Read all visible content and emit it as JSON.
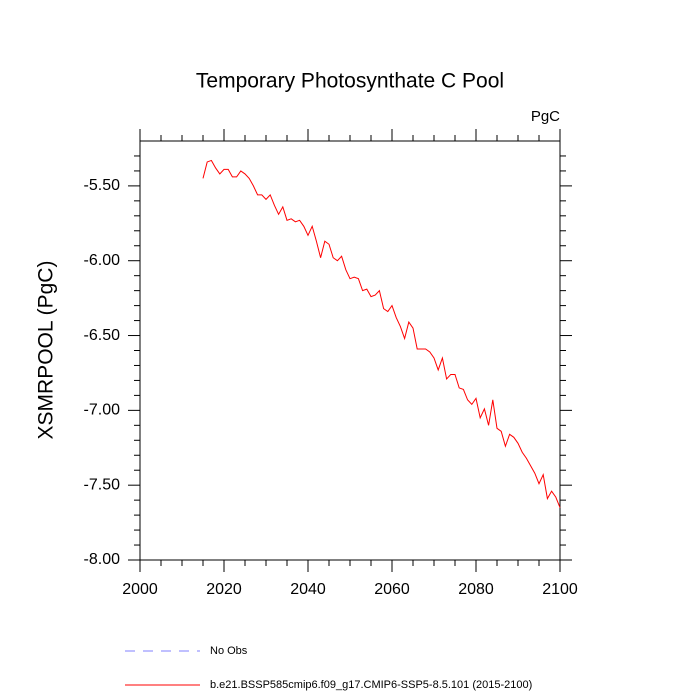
{
  "chart_data": {
    "type": "line",
    "title": "Temporary Photosynthate C Pool",
    "units": "PgC",
    "y_label": "XSMRPOOL  (PgC)",
    "x": [
      2015,
      2016,
      2017,
      2018,
      2019,
      2020,
      2021,
      2022,
      2023,
      2024,
      2025,
      2026,
      2027,
      2028,
      2029,
      2030,
      2031,
      2032,
      2033,
      2034,
      2035,
      2036,
      2037,
      2038,
      2039,
      2040,
      2041,
      2042,
      2043,
      2044,
      2045,
      2046,
      2047,
      2048,
      2049,
      2050,
      2051,
      2052,
      2053,
      2054,
      2055,
      2056,
      2057,
      2058,
      2059,
      2060,
      2061,
      2062,
      2063,
      2064,
      2065,
      2066,
      2067,
      2068,
      2069,
      2070,
      2071,
      2072,
      2073,
      2074,
      2075,
      2076,
      2077,
      2078,
      2079,
      2080,
      2081,
      2082,
      2083,
      2084,
      2085,
      2086,
      2087,
      2088,
      2089,
      2090,
      2091,
      2092,
      2093,
      2094,
      2095,
      2096,
      2097,
      2098,
      2099,
      2100
    ],
    "series": [
      {
        "name": "b.e21.BSSP585cmip6.f09_g17.CMIP6-SSP5-8.5.101 (2015-2100)",
        "color": "#ff0000",
        "values": [
          -5.45,
          -5.34,
          -5.33,
          -5.38,
          -5.42,
          -5.39,
          -5.39,
          -5.44,
          -5.44,
          -5.4,
          -5.42,
          -5.45,
          -5.5,
          -5.56,
          -5.56,
          -5.59,
          -5.56,
          -5.63,
          -5.69,
          -5.64,
          -5.73,
          -5.72,
          -5.74,
          -5.73,
          -5.77,
          -5.83,
          -5.77,
          -5.87,
          -5.98,
          -5.87,
          -5.89,
          -5.98,
          -6.0,
          -5.97,
          -6.06,
          -6.12,
          -6.11,
          -6.12,
          -6.2,
          -6.19,
          -6.24,
          -6.23,
          -6.2,
          -6.32,
          -6.34,
          -6.3,
          -6.38,
          -6.44,
          -6.52,
          -6.41,
          -6.45,
          -6.59,
          -6.59,
          -6.59,
          -6.61,
          -6.65,
          -6.73,
          -6.65,
          -6.79,
          -6.76,
          -6.76,
          -6.85,
          -6.86,
          -6.93,
          -6.96,
          -6.92,
          -7.05,
          -6.99,
          -7.1,
          -6.93,
          -7.12,
          -7.14,
          -7.24,
          -7.16,
          -7.18,
          -7.22,
          -7.28,
          -7.32,
          -7.37,
          -7.42,
          -7.49,
          -7.43,
          -7.59,
          -7.54,
          -7.58,
          -7.65
        ]
      }
    ],
    "legend_only": {
      "name": "No Obs",
      "color": "#8080ff",
      "dash": true
    },
    "xlim": [
      2000,
      2100
    ],
    "xticks": [
      2000,
      2020,
      2040,
      2060,
      2080,
      2100
    ],
    "xminorticks": [
      2005,
      2010,
      2015,
      2025,
      2030,
      2035,
      2045,
      2050,
      2055,
      2065,
      2070,
      2075,
      2085,
      2090,
      2095
    ],
    "ylim": [
      -8,
      -5.2
    ],
    "yticks": [
      {
        "value": -8,
        "label": "-8.00"
      },
      {
        "value": -7.5,
        "label": "-7.50"
      },
      {
        "value": -7,
        "label": "-7.00"
      },
      {
        "value": -6.5,
        "label": "-6.50"
      },
      {
        "value": -6,
        "label": "-6.00"
      },
      {
        "value": -5.5,
        "label": "-5.50"
      }
    ],
    "yminorticks": [
      -7.9,
      -7.8,
      -7.7,
      -7.6,
      -7.4,
      -7.3,
      -7.2,
      -7.1,
      -6.9,
      -6.8,
      -6.7,
      -6.6,
      -6.4,
      -6.3,
      -6.2,
      -6.1,
      -5.9,
      -5.8,
      -5.7,
      -5.6,
      -5.4,
      -5.3
    ]
  }
}
